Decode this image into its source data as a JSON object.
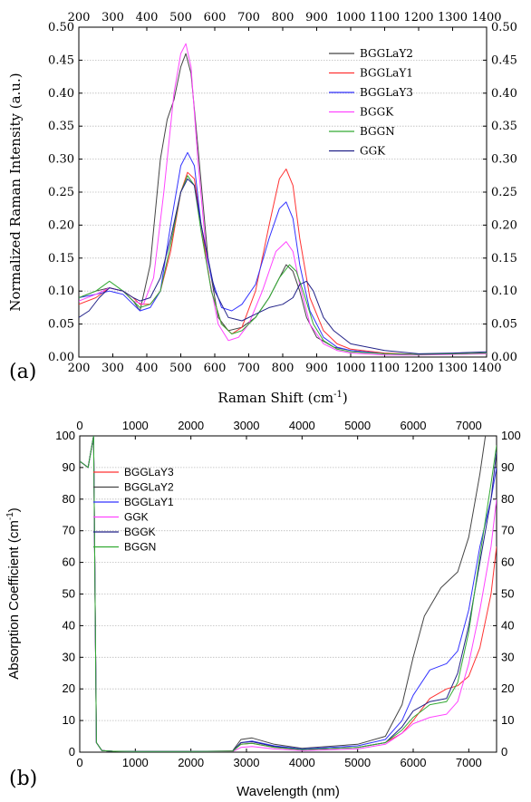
{
  "chart_data": [
    {
      "type": "line",
      "panel_label": "(a)",
      "title": "",
      "xlabel": "Raman Shift (cm",
      "xlabel_sup": "-1",
      "xlabel_end": ")",
      "ylabel": "Normalized Raman Intensity (a.u.)",
      "xlim": [
        200,
        1400
      ],
      "ylim": [
        0,
        0.5
      ],
      "xticks": [
        "200",
        "300",
        "400",
        "500",
        "600",
        "700",
        "800",
        "900",
        "1000",
        "1100",
        "1200",
        "1300",
        "1400"
      ],
      "yticks": [
        "0.00",
        "0.05",
        "0.10",
        "0.15",
        "0.20",
        "0.25",
        "0.30",
        "0.35",
        "0.40",
        "0.45",
        "0.50"
      ],
      "grid": "horizontal-dotted",
      "legend_position": "top-right",
      "series": [
        {
          "name": "BGGLaY2",
          "color": "#444444",
          "x": [
            200,
            250,
            290,
            330,
            360,
            380,
            410,
            440,
            460,
            480,
            500,
            515,
            530,
            550,
            580,
            610,
            640,
            680,
            720,
            760,
            790,
            810,
            830,
            850,
            870,
            900,
            950,
            1000,
            1100,
            1200,
            1300,
            1400
          ],
          "y": [
            0.09,
            0.1,
            0.105,
            0.1,
            0.085,
            0.07,
            0.14,
            0.3,
            0.36,
            0.39,
            0.44,
            0.46,
            0.43,
            0.32,
            0.15,
            0.06,
            0.04,
            0.045,
            0.06,
            0.09,
            0.12,
            0.14,
            0.13,
            0.1,
            0.06,
            0.03,
            0.015,
            0.01,
            0.005,
            0.004,
            0.005,
            0.006
          ]
        },
        {
          "name": "BGGLaY1",
          "color": "#ff3333",
          "x": [
            200,
            250,
            290,
            330,
            360,
            380,
            410,
            440,
            470,
            500,
            520,
            540,
            560,
            590,
            620,
            650,
            680,
            720,
            760,
            790,
            810,
            830,
            850,
            880,
            920,
            960,
            1000,
            1100,
            1200,
            1300,
            1400
          ],
          "y": [
            0.08,
            0.09,
            0.105,
            0.1,
            0.09,
            0.08,
            0.08,
            0.1,
            0.16,
            0.25,
            0.28,
            0.27,
            0.2,
            0.1,
            0.05,
            0.035,
            0.045,
            0.1,
            0.2,
            0.27,
            0.285,
            0.26,
            0.18,
            0.09,
            0.04,
            0.02,
            0.012,
            0.006,
            0.004,
            0.005,
            0.006
          ]
        },
        {
          "name": "BGGLaY3",
          "color": "#3333ff",
          "x": [
            200,
            250,
            290,
            330,
            360,
            380,
            410,
            440,
            470,
            500,
            520,
            540,
            560,
            590,
            620,
            650,
            680,
            720,
            760,
            790,
            810,
            830,
            850,
            880,
            920,
            960,
            1000,
            1100,
            1200,
            1300,
            1400
          ],
          "y": [
            0.09,
            0.095,
            0.1,
            0.095,
            0.08,
            0.07,
            0.075,
            0.1,
            0.2,
            0.29,
            0.31,
            0.29,
            0.2,
            0.12,
            0.075,
            0.07,
            0.08,
            0.11,
            0.18,
            0.225,
            0.235,
            0.21,
            0.14,
            0.07,
            0.03,
            0.015,
            0.01,
            0.005,
            0.004,
            0.005,
            0.006
          ]
        },
        {
          "name": "BGGK",
          "color": "#ff44ff",
          "x": [
            200,
            250,
            290,
            330,
            360,
            390,
            420,
            450,
            480,
            500,
            515,
            530,
            550,
            580,
            610,
            640,
            670,
            700,
            740,
            780,
            810,
            830,
            850,
            880,
            920,
            960,
            1000,
            1100,
            1200,
            1300,
            1400
          ],
          "y": [
            0.085,
            0.095,
            0.105,
            0.1,
            0.085,
            0.08,
            0.12,
            0.25,
            0.4,
            0.46,
            0.475,
            0.44,
            0.3,
            0.13,
            0.05,
            0.025,
            0.03,
            0.05,
            0.1,
            0.16,
            0.175,
            0.16,
            0.11,
            0.05,
            0.02,
            0.01,
            0.006,
            0.003,
            0.003,
            0.004,
            0.005
          ]
        },
        {
          "name": "BGGN",
          "color": "#33aa33",
          "x": [
            200,
            250,
            290,
            330,
            360,
            380,
            410,
            440,
            470,
            500,
            520,
            540,
            560,
            590,
            620,
            650,
            680,
            720,
            760,
            790,
            820,
            840,
            860,
            890,
            920,
            960,
            1000,
            1100,
            1200,
            1300,
            1400
          ],
          "y": [
            0.09,
            0.1,
            0.115,
            0.1,
            0.085,
            0.075,
            0.08,
            0.1,
            0.17,
            0.25,
            0.275,
            0.26,
            0.19,
            0.1,
            0.05,
            0.035,
            0.04,
            0.06,
            0.09,
            0.12,
            0.14,
            0.13,
            0.1,
            0.05,
            0.025,
            0.012,
            0.008,
            0.005,
            0.004,
            0.005,
            0.006
          ]
        },
        {
          "name": "GGK",
          "color": "#222288",
          "x": [
            200,
            230,
            260,
            290,
            330,
            360,
            380,
            410,
            440,
            470,
            500,
            520,
            540,
            560,
            600,
            640,
            680,
            720,
            760,
            800,
            830,
            850,
            870,
            890,
            920,
            950,
            1000,
            1100,
            1200,
            1300,
            1400
          ],
          "y": [
            0.06,
            0.07,
            0.09,
            0.105,
            0.1,
            0.09,
            0.085,
            0.09,
            0.12,
            0.18,
            0.25,
            0.27,
            0.26,
            0.2,
            0.1,
            0.06,
            0.055,
            0.065,
            0.075,
            0.08,
            0.09,
            0.11,
            0.115,
            0.1,
            0.06,
            0.04,
            0.02,
            0.01,
            0.005,
            0.006,
            0.008
          ]
        }
      ]
    },
    {
      "type": "line",
      "panel_label": "(b)",
      "title": "",
      "xlabel": "Wavelength (nm)",
      "ylabel": "Absorption Coefficient (cm",
      "ylabel_sup": "-1",
      "ylabel_end": ")",
      "xlim": [
        0,
        7500
      ],
      "ylim": [
        0,
        100
      ],
      "xticks": [
        "0",
        "1000",
        "2000",
        "3000",
        "4000",
        "5000",
        "6000",
        "7000"
      ],
      "yticks": [
        "0",
        "10",
        "20",
        "30",
        "40",
        "50",
        "60",
        "70",
        "80",
        "90",
        "100"
      ],
      "grid": "horizontal-dotted",
      "legend_position": "top-left",
      "series": [
        {
          "name": "BGGLaY3",
          "color": "#ff3333",
          "x": [
            0,
            150,
            250,
            300,
            400,
            600,
            1000,
            2000,
            2750,
            2900,
            3100,
            3500,
            4000,
            5000,
            5500,
            5800,
            6000,
            6300,
            6600,
            6800,
            7000,
            7200,
            7400,
            7500
          ],
          "y": [
            92,
            90,
            100,
            3,
            0.5,
            0.3,
            0.2,
            0.2,
            0.3,
            2.5,
            2.8,
            1.5,
            0.8,
            1.5,
            3,
            6,
            10,
            17,
            20,
            21,
            24,
            33,
            50,
            65
          ]
        },
        {
          "name": "BGGLaY2",
          "color": "#444444",
          "x": [
            0,
            150,
            250,
            300,
            400,
            600,
            1000,
            2000,
            2750,
            2900,
            3100,
            3500,
            4000,
            5000,
            5500,
            5800,
            6000,
            6200,
            6500,
            6800,
            7000,
            7200,
            7300
          ],
          "y": [
            92,
            90,
            100,
            3,
            0.5,
            0.3,
            0.2,
            0.2,
            0.4,
            4,
            4.5,
            2.5,
            1.2,
            2.5,
            5,
            15,
            30,
            43,
            52,
            57,
            68,
            88,
            100
          ]
        },
        {
          "name": "BGGLaY1",
          "color": "#3333ff",
          "x": [
            0,
            150,
            250,
            300,
            400,
            600,
            1000,
            2000,
            2750,
            2900,
            3100,
            3500,
            4000,
            5000,
            5500,
            5800,
            6000,
            6300,
            6600,
            6800,
            7000,
            7200,
            7400,
            7500
          ],
          "y": [
            92,
            90,
            100,
            3,
            0.5,
            0.3,
            0.2,
            0.2,
            0.3,
            3,
            3.5,
            2,
            1,
            2,
            4,
            10,
            18,
            26,
            28,
            32,
            45,
            65,
            80,
            90
          ]
        },
        {
          "name": "GGK",
          "color": "#ff44ff",
          "x": [
            0,
            150,
            250,
            300,
            400,
            600,
            1000,
            2000,
            2750,
            2900,
            3100,
            3500,
            4000,
            5000,
            5500,
            5800,
            6000,
            6300,
            6600,
            6800,
            7000,
            7200,
            7400,
            7500
          ],
          "y": [
            92,
            90,
            100,
            3,
            0.5,
            0.3,
            0.2,
            0.2,
            0.2,
            1.5,
            1.8,
            1,
            0.5,
            1,
            2.5,
            6,
            9,
            11,
            12,
            16,
            28,
            45,
            65,
            80
          ]
        },
        {
          "name": "BGGK",
          "color": "#222288",
          "x": [
            0,
            150,
            250,
            300,
            400,
            600,
            1000,
            2000,
            2750,
            2900,
            3100,
            3500,
            4000,
            5000,
            5500,
            5800,
            6000,
            6300,
            6600,
            6800,
            7000,
            7200,
            7400,
            7500
          ],
          "y": [
            92,
            90,
            100,
            3,
            0.5,
            0.3,
            0.2,
            0.2,
            0.3,
            3,
            3.3,
            1.8,
            0.8,
            1.5,
            3,
            8,
            13,
            16,
            17,
            25,
            40,
            60,
            80,
            95
          ]
        },
        {
          "name": "BGGN",
          "color": "#33aa33",
          "x": [
            0,
            150,
            250,
            300,
            400,
            600,
            1000,
            2000,
            2750,
            2900,
            3100,
            3500,
            4000,
            5000,
            5500,
            5800,
            6000,
            6300,
            6600,
            6800,
            7000,
            7200,
            7400,
            7500
          ],
          "y": [
            92,
            90,
            100,
            3,
            0.5,
            0.3,
            0.2,
            0.2,
            0.3,
            2.5,
            2.8,
            1.5,
            0.8,
            1.5,
            3,
            7,
            11,
            15,
            16,
            22,
            38,
            62,
            85,
            97
          ]
        }
      ]
    }
  ]
}
